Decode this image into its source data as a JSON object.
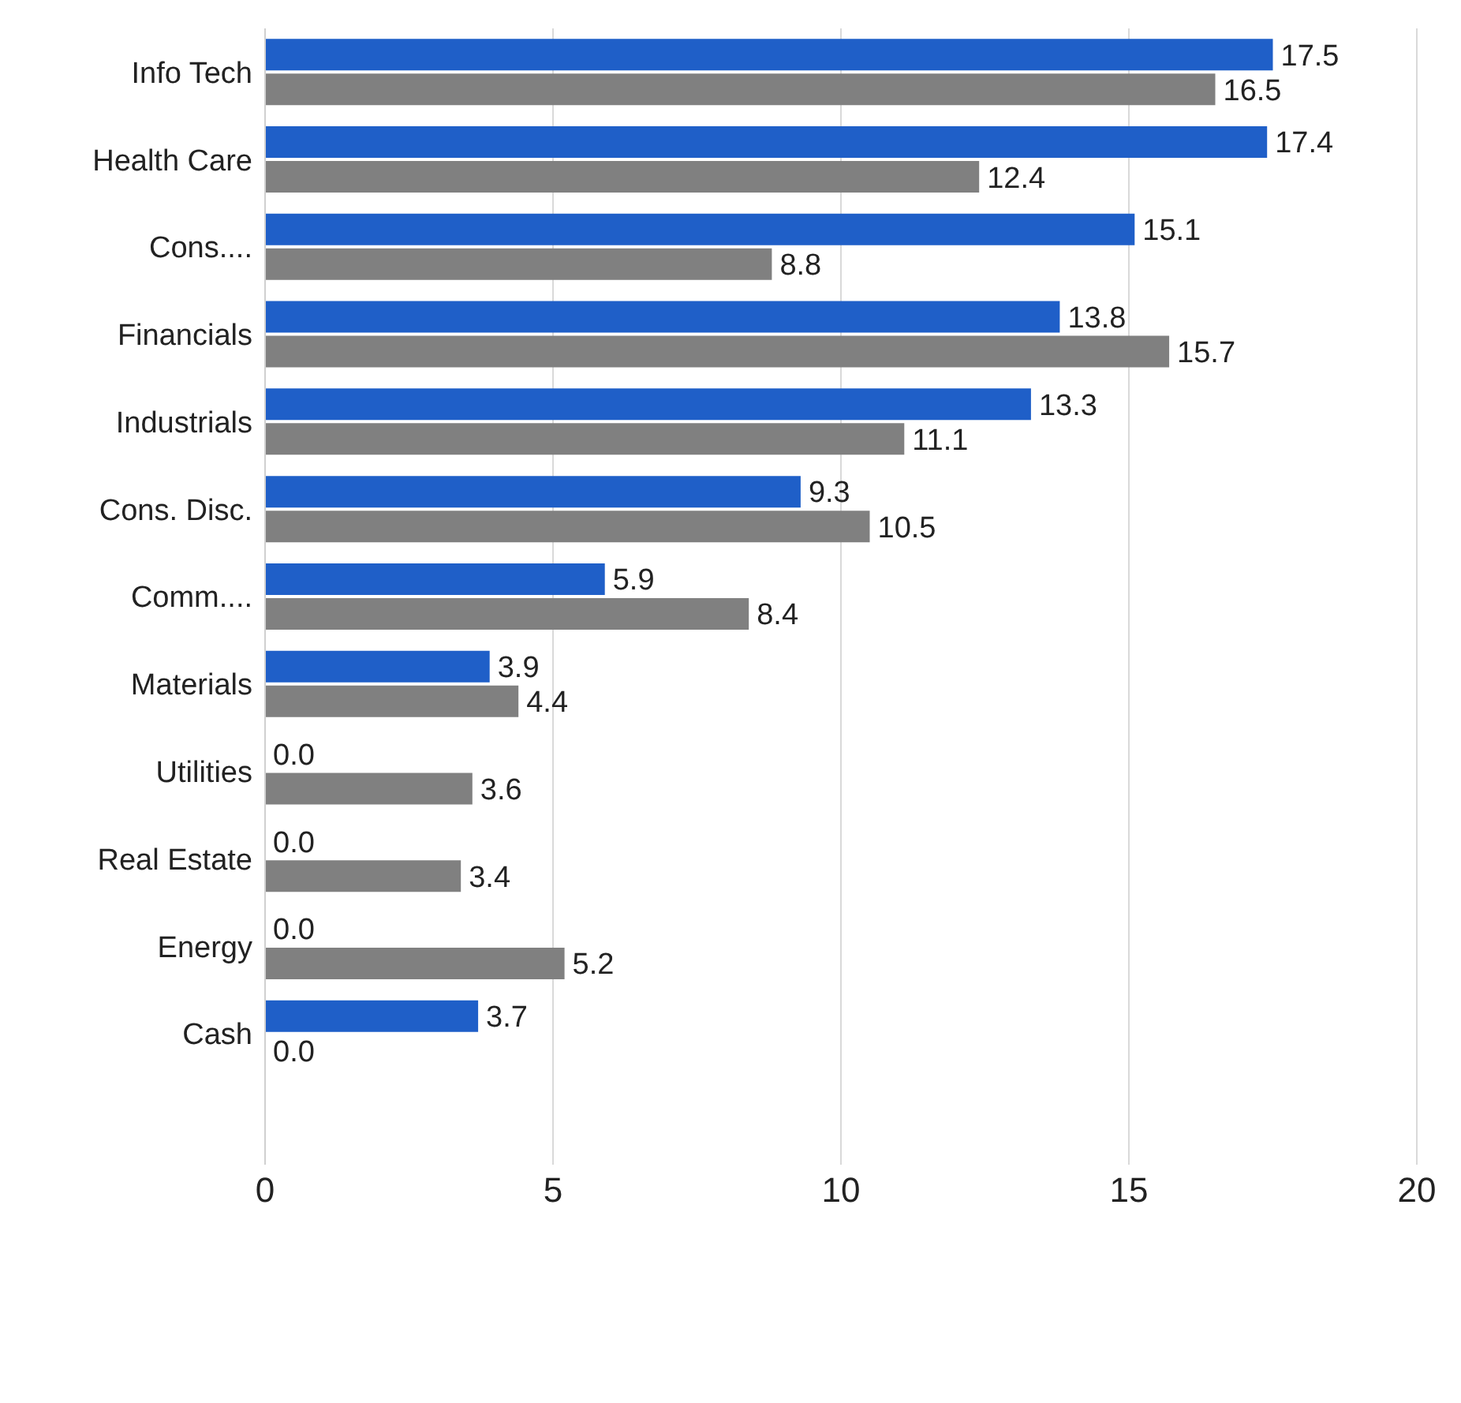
{
  "chart_data": {
    "type": "bar",
    "orientation": "horizontal",
    "categories": [
      "Info Tech",
      "Health Care",
      "Cons....",
      "Financials",
      "Industrials",
      "Cons. Disc.",
      "Comm....",
      "Materials",
      "Utilities",
      "Real Estate",
      "Energy",
      "Cash",
      null
    ],
    "series": [
      {
        "color": "#1f5fc8",
        "values": [
          17.5,
          17.4,
          15.1,
          13.8,
          13.3,
          9.3,
          5.9,
          3.9,
          0,
          0,
          0,
          3.7,
          null
        ],
        "value_labels": [
          "17.5",
          "17.4",
          "15.1",
          "13.8",
          "13.3",
          "9.3",
          "5.9",
          "3.9",
          "0.0",
          "0.0",
          "0.0",
          "3.7",
          null
        ]
      },
      {
        "color": "#808080",
        "values": [
          16.5,
          12.4,
          8.8,
          15.7,
          11.1,
          10.5,
          8.4,
          4.4,
          3.6,
          3.4,
          5.2,
          0,
          null
        ],
        "value_labels": [
          "16.5",
          "12.4",
          "8.8",
          "15.7",
          "11.1",
          "10.5",
          "8.4",
          "4.4",
          "3.6",
          "3.4",
          "5.2",
          "0.0",
          null
        ]
      }
    ],
    "xlim": [
      0,
      20
    ],
    "xticks": [
      0,
      5,
      10,
      15,
      20
    ],
    "grid": "x"
  }
}
